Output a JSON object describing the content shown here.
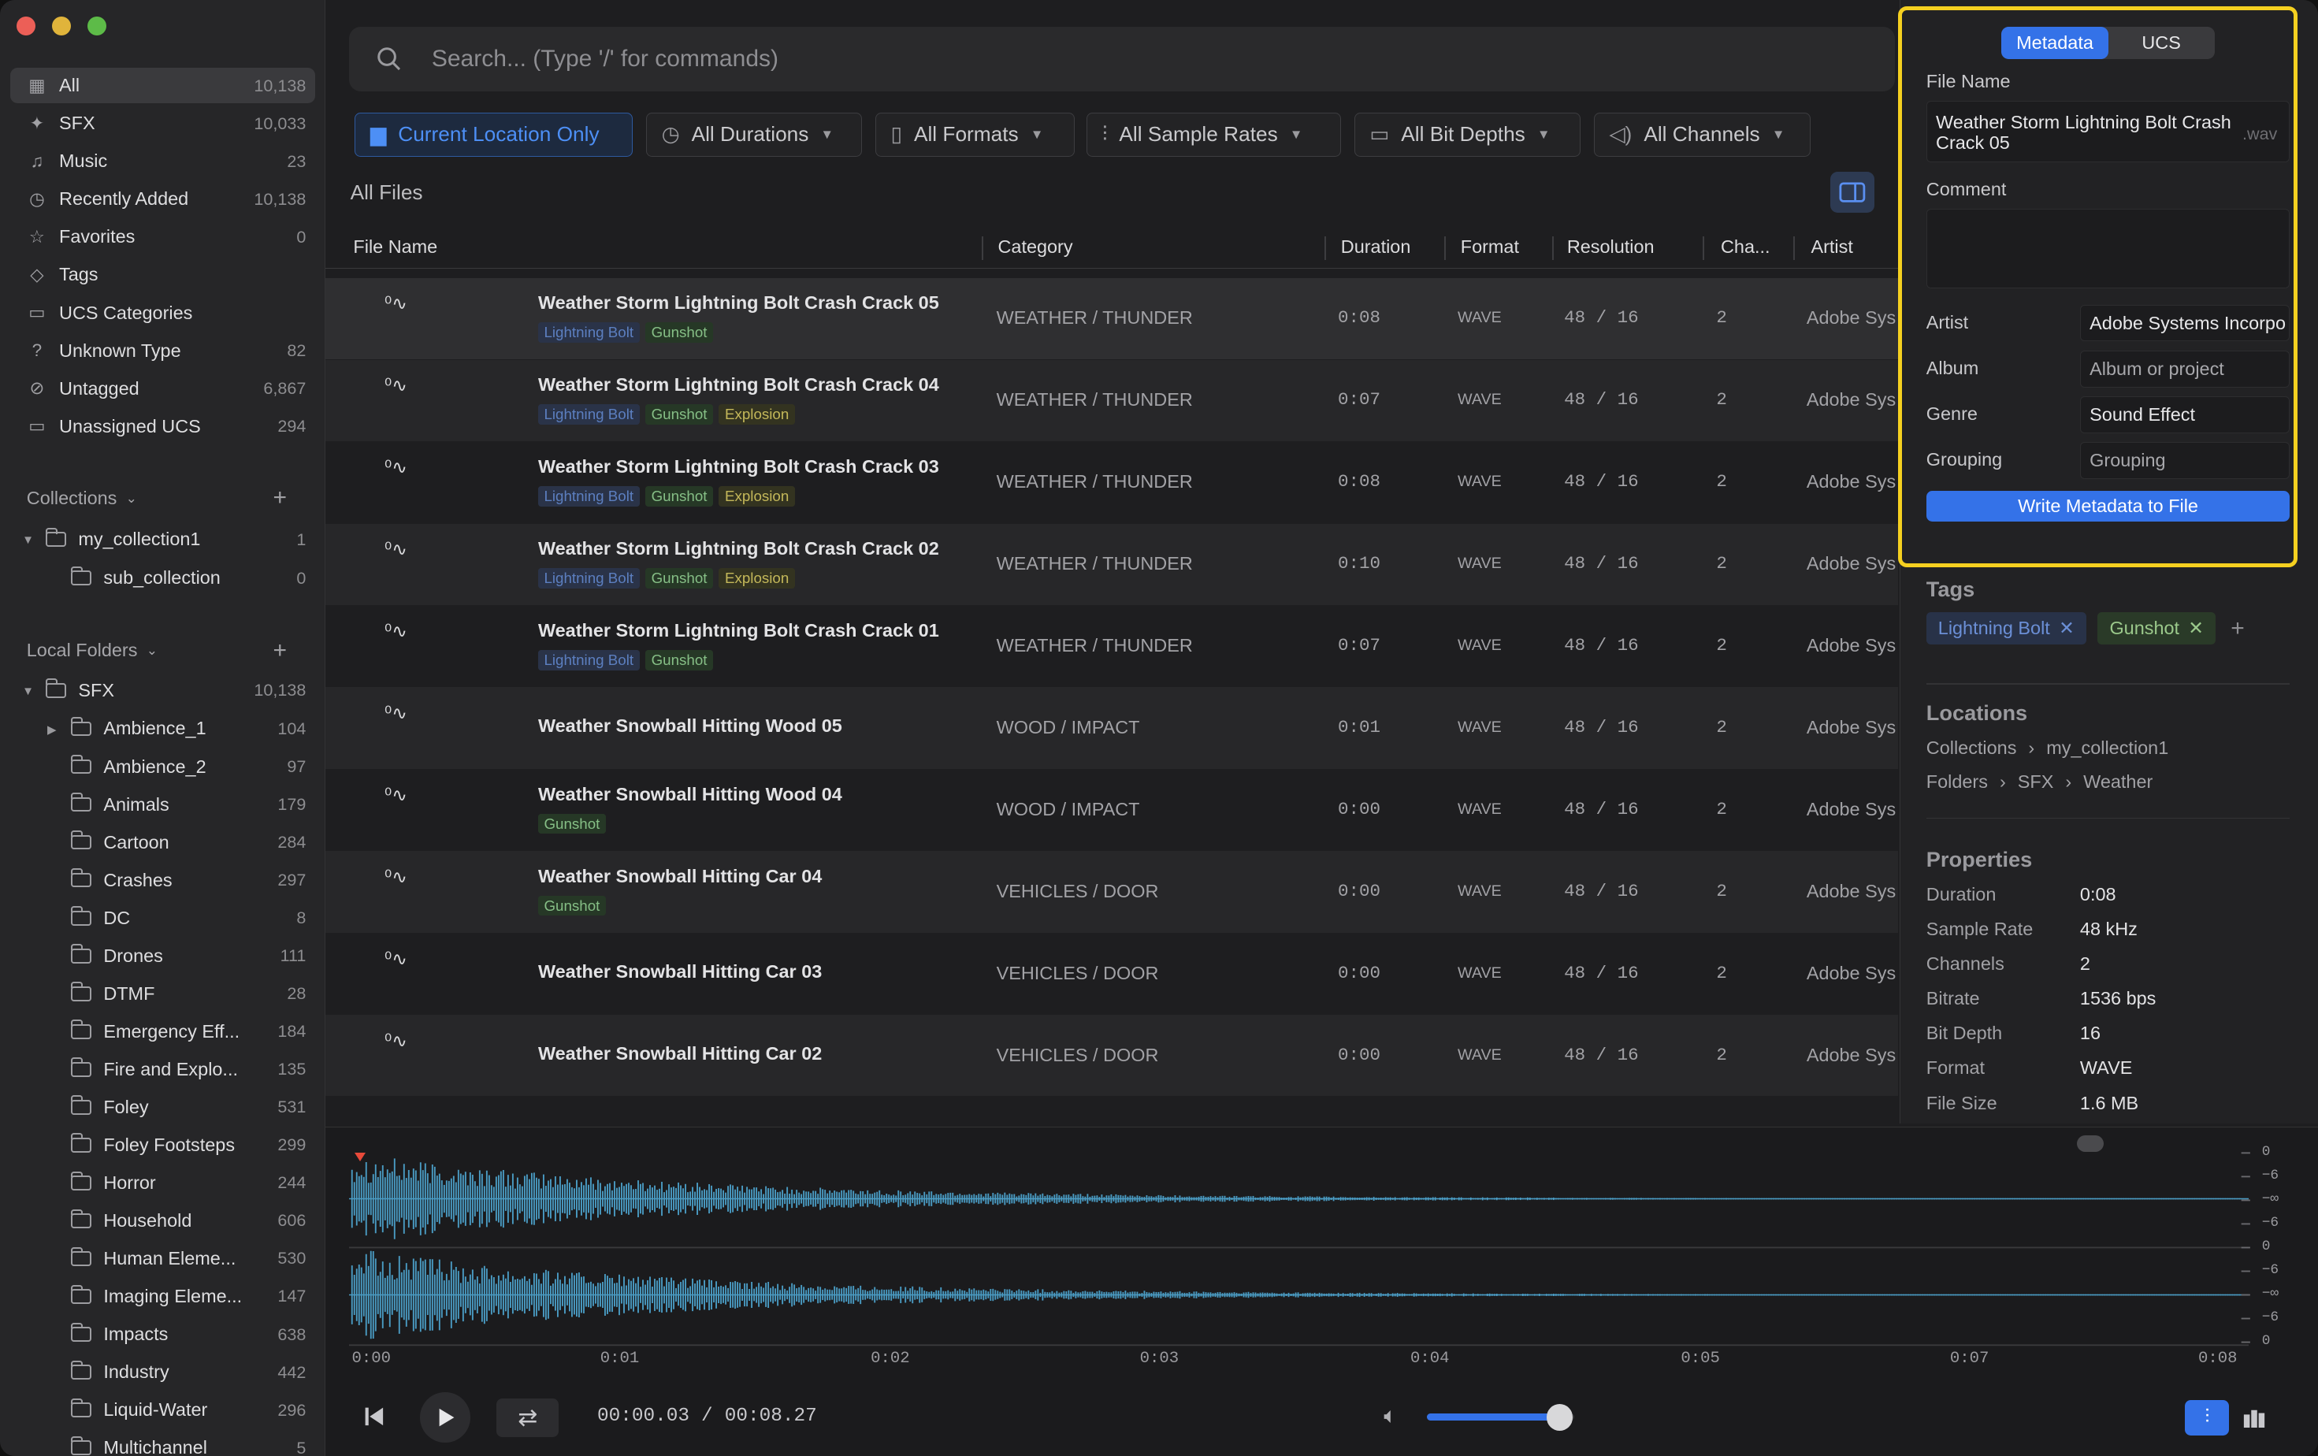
{
  "sidebar": {
    "library": [
      {
        "label": "All",
        "count": "10,138",
        "icon": "grid-icon"
      },
      {
        "label": "SFX",
        "count": "10,033",
        "icon": "sparkle-icon"
      },
      {
        "label": "Music",
        "count": "23",
        "icon": "music-note-icon"
      },
      {
        "label": "Recently Added",
        "count": "10,138",
        "icon": "clock-icon"
      },
      {
        "label": "Favorites",
        "count": "0",
        "icon": "star-icon"
      },
      {
        "label": "Tags",
        "count": "",
        "icon": "tag-icon"
      },
      {
        "label": "UCS Categories",
        "count": "",
        "icon": "folder-icon"
      },
      {
        "label": "Unknown Type",
        "count": "82",
        "icon": "question-icon"
      },
      {
        "label": "Untagged",
        "count": "6,867",
        "icon": "untag-icon"
      },
      {
        "label": "Unassigned UCS",
        "count": "294",
        "icon": "folder-icon"
      }
    ],
    "collections_header": "Collections",
    "collections": [
      {
        "label": "my_collection1",
        "count": "1"
      },
      {
        "label": "sub_collection",
        "count": "0"
      }
    ],
    "local_folders_header": "Local Folders",
    "root_folder": {
      "label": "SFX",
      "count": "10,138"
    },
    "folders": [
      {
        "label": "Ambience_1",
        "count": "104"
      },
      {
        "label": "Ambience_2",
        "count": "97"
      },
      {
        "label": "Animals",
        "count": "179"
      },
      {
        "label": "Cartoon",
        "count": "284"
      },
      {
        "label": "Crashes",
        "count": "297"
      },
      {
        "label": "DC",
        "count": "8"
      },
      {
        "label": "Drones",
        "count": "111"
      },
      {
        "label": "DTMF",
        "count": "28"
      },
      {
        "label": "Emergency Eff...",
        "count": "184"
      },
      {
        "label": "Fire and Explo...",
        "count": "135"
      },
      {
        "label": "Foley",
        "count": "531"
      },
      {
        "label": "Foley Footsteps",
        "count": "299"
      },
      {
        "label": "Horror",
        "count": "244"
      },
      {
        "label": "Household",
        "count": "606"
      },
      {
        "label": "Human Eleme...",
        "count": "530"
      },
      {
        "label": "Imaging Eleme...",
        "count": "147"
      },
      {
        "label": "Impacts",
        "count": "638"
      },
      {
        "label": "Industry",
        "count": "442"
      },
      {
        "label": "Liquid-Water",
        "count": "296"
      },
      {
        "label": "Multichannel",
        "count": "5"
      }
    ]
  },
  "search": {
    "placeholder": "Search... (Type '/' for commands)"
  },
  "filters": {
    "location": "Current Location Only",
    "durations": "All Durations",
    "formats": "All Formats",
    "sample_rates": "All Sample Rates",
    "bit_depths": "All Bit Depths",
    "channels": "All Channels"
  },
  "section_title": "All Files",
  "columns": {
    "file_name": "File Name",
    "category": "Category",
    "duration": "Duration",
    "format": "Format",
    "resolution": "Resolution",
    "channels": "Cha...",
    "artist": "Artist"
  },
  "rows": [
    {
      "name": "Weather Storm Lightning Bolt Crash Crack 05",
      "tags": [
        "Lightning Bolt",
        "Gunshot"
      ],
      "category": "WEATHER / THUNDER",
      "duration": "0:08",
      "format": "WAVE",
      "res": "48 / 16",
      "ch": "2",
      "artist": "Adobe Sys"
    },
    {
      "name": "Weather Storm Lightning Bolt Crash Crack 04",
      "tags": [
        "Lightning Bolt",
        "Gunshot",
        "Explosion"
      ],
      "category": "WEATHER / THUNDER",
      "duration": "0:07",
      "format": "WAVE",
      "res": "48 / 16",
      "ch": "2",
      "artist": "Adobe Sys"
    },
    {
      "name": "Weather Storm Lightning Bolt Crash Crack 03",
      "tags": [
        "Lightning Bolt",
        "Gunshot",
        "Explosion"
      ],
      "category": "WEATHER / THUNDER",
      "duration": "0:08",
      "format": "WAVE",
      "res": "48 / 16",
      "ch": "2",
      "artist": "Adobe Sys"
    },
    {
      "name": "Weather Storm Lightning Bolt Crash Crack 02",
      "tags": [
        "Lightning Bolt",
        "Gunshot",
        "Explosion"
      ],
      "category": "WEATHER / THUNDER",
      "duration": "0:10",
      "format": "WAVE",
      "res": "48 / 16",
      "ch": "2",
      "artist": "Adobe Sys"
    },
    {
      "name": "Weather Storm Lightning Bolt Crash Crack 01",
      "tags": [
        "Lightning Bolt",
        "Gunshot"
      ],
      "category": "WEATHER / THUNDER",
      "duration": "0:07",
      "format": "WAVE",
      "res": "48 / 16",
      "ch": "2",
      "artist": "Adobe Sys"
    },
    {
      "name": "Weather Snowball Hitting Wood 05",
      "tags": [],
      "category": "WOOD / IMPACT",
      "duration": "0:01",
      "format": "WAVE",
      "res": "48 / 16",
      "ch": "2",
      "artist": "Adobe Sys"
    },
    {
      "name": "Weather Snowball Hitting Wood 04",
      "tags": [
        "Gunshot"
      ],
      "category": "WOOD / IMPACT",
      "duration": "0:00",
      "format": "WAVE",
      "res": "48 / 16",
      "ch": "2",
      "artist": "Adobe Sys"
    },
    {
      "name": "Weather Snowball Hitting Car 04",
      "tags": [
        "Gunshot"
      ],
      "category": "VEHICLES / DOOR",
      "duration": "0:00",
      "format": "WAVE",
      "res": "48 / 16",
      "ch": "2",
      "artist": "Adobe Sys"
    },
    {
      "name": "Weather Snowball Hitting Car 03",
      "tags": [],
      "category": "VEHICLES / DOOR",
      "duration": "0:00",
      "format": "WAVE",
      "res": "48 / 16",
      "ch": "2",
      "artist": "Adobe Sys"
    },
    {
      "name": "Weather Snowball Hitting Car 02",
      "tags": [],
      "category": "VEHICLES / DOOR",
      "duration": "0:00",
      "format": "WAVE",
      "res": "48 / 16",
      "ch": "2",
      "artist": "Adobe Sys"
    }
  ],
  "panel": {
    "tab_metadata": "Metadata",
    "tab_ucs": "UCS",
    "file_name_label": "File Name",
    "file_name_value": "Weather Storm Lightning Bolt Crash Crack 05",
    "file_ext": ".wav",
    "comment_label": "Comment",
    "comment_value": "",
    "fields": [
      {
        "label": "Artist",
        "value": "Adobe Systems Incorpo",
        "placeholder": ""
      },
      {
        "label": "Album",
        "value": "",
        "placeholder": "Album or project"
      },
      {
        "label": "Genre",
        "value": "Sound Effect",
        "placeholder": ""
      },
      {
        "label": "Grouping",
        "value": "",
        "placeholder": "Grouping"
      }
    ],
    "write_button": "Write Metadata to File",
    "tags_header": "Tags",
    "tags": [
      "Lightning Bolt",
      "Gunshot"
    ],
    "locations_header": "Locations",
    "locations": [
      {
        "root": "Collections",
        "path": [
          "my_collection1"
        ]
      },
      {
        "root": "Folders",
        "path": [
          "SFX",
          "Weather"
        ]
      }
    ],
    "properties_header": "Properties",
    "properties": [
      {
        "k": "Duration",
        "v": "0:08"
      },
      {
        "k": "Sample Rate",
        "v": "48 kHz"
      },
      {
        "k": "Channels",
        "v": "2"
      },
      {
        "k": "Bitrate",
        "v": "1536 bps"
      },
      {
        "k": "Bit Depth",
        "v": "16"
      },
      {
        "k": "Format",
        "v": "WAVE"
      },
      {
        "k": "File Size",
        "v": "1.6 MB"
      }
    ]
  },
  "player": {
    "time_current": "00:00.03",
    "time_sep": "/",
    "time_total": "00:08.27",
    "volume": 0.9,
    "timeline": [
      "0:00",
      "0:01",
      "0:02",
      "0:03",
      "0:04",
      "0:05",
      "0:07",
      "0:08"
    ],
    "db_scale": [
      "0",
      "−6",
      "−∞",
      "−6",
      "0",
      "−6",
      "−∞",
      "−6",
      "0"
    ]
  },
  "colors": {
    "accent": "#3472e8",
    "waveform": "#4a9cc4",
    "highlight": "#f5d020"
  }
}
